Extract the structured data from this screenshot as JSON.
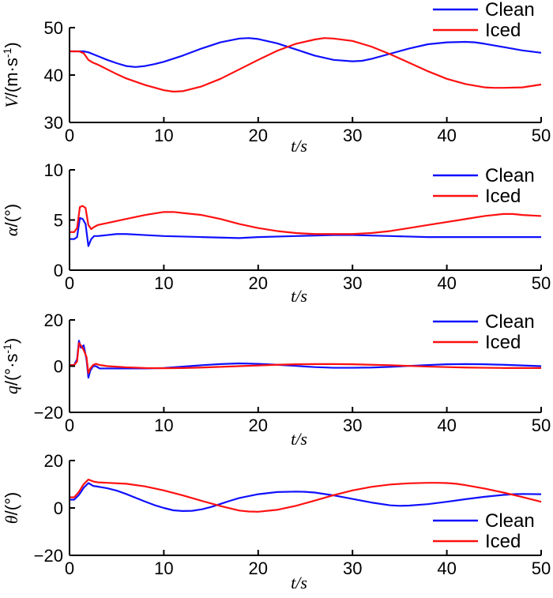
{
  "colors": {
    "clean": "#1010ff",
    "iced": "#ff1010",
    "axis": "#000000",
    "background": "#ffffff"
  },
  "chart_data": [
    {
      "type": "line",
      "id": "velocity",
      "ylabel_main": "V",
      "ylabel_unit": "/(m·s",
      "ylabel_sup": "-1",
      "ylabel_close": ")",
      "xlabel": "t/s",
      "xlim": [
        0,
        50
      ],
      "ylim": [
        30,
        50
      ],
      "xticks": [
        0,
        10,
        20,
        30,
        40,
        50
      ],
      "yticks": [
        30,
        40,
        50
      ],
      "xtick_labels": [
        "0",
        "10",
        "20",
        "30",
        "40",
        "50"
      ],
      "ytick_labels": [
        "30",
        "40",
        "50"
      ],
      "legend": [
        "Clean",
        "Iced"
      ],
      "legend_position": "top-right",
      "series": [
        {
          "name": "Clean",
          "x": [
            0,
            0.5,
            1,
            1.5,
            2,
            3,
            4,
            5,
            6,
            7,
            8,
            9,
            10,
            12,
            14,
            16,
            18,
            19,
            20,
            22,
            24,
            26,
            28,
            30,
            31,
            32,
            34,
            36,
            38,
            40,
            42,
            43,
            44,
            46,
            48,
            50
          ],
          "values": [
            45,
            45,
            45,
            45,
            44.8,
            44,
            43.2,
            42.5,
            41.9,
            41.7,
            41.9,
            42.3,
            42.8,
            44.1,
            45.6,
            46.9,
            47.7,
            47.8,
            47.6,
            46.7,
            45.4,
            44.1,
            43.2,
            42.9,
            43,
            43.4,
            44.5,
            45.6,
            46.5,
            46.9,
            47,
            46.9,
            46.6,
            45.9,
            45.2,
            44.7
          ]
        },
        {
          "name": "Iced",
          "x": [
            0,
            0.5,
            1,
            1.5,
            2,
            2.5,
            3,
            4,
            5,
            6,
            8,
            10,
            11,
            12,
            14,
            16,
            18,
            20,
            22,
            24,
            26,
            27,
            28,
            30,
            32,
            34,
            36,
            38,
            40,
            42,
            44,
            45,
            46,
            48,
            50
          ],
          "values": [
            45,
            45,
            45,
            44.6,
            43.2,
            42.6,
            42.2,
            41.2,
            40.2,
            39.3,
            37.9,
            36.8,
            36.5,
            36.6,
            37.6,
            39.2,
            41.2,
            43.2,
            45.1,
            46.6,
            47.5,
            47.8,
            47.7,
            47.2,
            46,
            44.4,
            42.6,
            40.8,
            39.2,
            38.1,
            37.4,
            37.3,
            37.3,
            37.4,
            38
          ]
        }
      ]
    },
    {
      "type": "line",
      "id": "alpha",
      "ylabel_main": "α",
      "ylabel_unit": "/(°)",
      "ylabel_sup": "",
      "ylabel_close": "",
      "xlabel": "t/s",
      "xlim": [
        0,
        50
      ],
      "ylim": [
        0,
        10
      ],
      "xticks": [
        0,
        10,
        20,
        30,
        40,
        50
      ],
      "yticks": [
        0,
        5,
        10
      ],
      "xtick_labels": [
        "0",
        "10",
        "20",
        "30",
        "40",
        "50"
      ],
      "ytick_labels": [
        "0",
        "5",
        "10"
      ],
      "legend": [
        "Clean",
        "Iced"
      ],
      "legend_position": "top-right",
      "series": [
        {
          "name": "Clean",
          "x": [
            0,
            0.5,
            0.8,
            1.1,
            1.4,
            1.7,
            2.0,
            2.3,
            2.6,
            3,
            4,
            5,
            6,
            8,
            10,
            14,
            18,
            20,
            24,
            28,
            30,
            34,
            38,
            42,
            46,
            50
          ],
          "values": [
            3.1,
            3.1,
            3.3,
            5.2,
            5.1,
            4.6,
            2.4,
            3.1,
            3.4,
            3.4,
            3.5,
            3.6,
            3.6,
            3.5,
            3.4,
            3.3,
            3.2,
            3.3,
            3.4,
            3.5,
            3.5,
            3.4,
            3.3,
            3.3,
            3.3,
            3.3
          ]
        },
        {
          "name": "Iced",
          "x": [
            0,
            0.5,
            0.8,
            1.1,
            1.4,
            1.7,
            2.0,
            2.3,
            2.6,
            3,
            4,
            6,
            8,
            10,
            11,
            12,
            14,
            16,
            18,
            20,
            22,
            24,
            26,
            28,
            30,
            32,
            34,
            36,
            38,
            40,
            42,
            44,
            46,
            47,
            48,
            50
          ],
          "values": [
            3.8,
            3.8,
            4.2,
            6.3,
            6.4,
            6.2,
            4.5,
            4.1,
            4.3,
            4.5,
            4.7,
            5.1,
            5.5,
            5.8,
            5.8,
            5.7,
            5.5,
            5.1,
            4.6,
            4.2,
            3.9,
            3.7,
            3.6,
            3.6,
            3.6,
            3.7,
            3.9,
            4.2,
            4.5,
            4.8,
            5.1,
            5.4,
            5.6,
            5.6,
            5.5,
            5.4
          ]
        }
      ]
    },
    {
      "type": "line",
      "id": "pitch_rate",
      "ylabel_main": "q",
      "ylabel_unit": "/(°·s",
      "ylabel_sup": "-1",
      "ylabel_close": ")",
      "xlabel": "t/s",
      "xlim": [
        0,
        50
      ],
      "ylim": [
        -20,
        20
      ],
      "xticks": [
        0,
        10,
        20,
        30,
        40,
        50
      ],
      "yticks": [
        -20,
        0,
        20
      ],
      "xtick_labels": [
        "0",
        "10",
        "20",
        "30",
        "40",
        "50"
      ],
      "ytick_labels": [
        "−20",
        "0",
        "20"
      ],
      "legend": [
        "Clean",
        "Iced"
      ],
      "legend_position": "top-right",
      "series": [
        {
          "name": "Clean",
          "x": [
            0,
            0.5,
            0.8,
            1.0,
            1.2,
            1.5,
            1.8,
            2.0,
            2.2,
            2.5,
            2.8,
            3.2,
            4,
            6,
            8,
            10,
            12,
            14,
            16,
            18,
            20,
            22,
            24,
            26,
            28,
            30,
            32,
            34,
            36,
            38,
            40,
            42,
            44,
            46,
            48,
            50
          ],
          "values": [
            0.5,
            0.5,
            3,
            11,
            8,
            9,
            3,
            -5,
            -2,
            0,
            0,
            -1,
            -1,
            -1,
            -1,
            -0.8,
            -0.2,
            0.4,
            0.9,
            1.2,
            1,
            0.6,
            0.1,
            -0.4,
            -0.7,
            -0.7,
            -0.6,
            -0.3,
            0.1,
            0.5,
            0.8,
            0.9,
            0.8,
            0.6,
            0.3,
            0
          ]
        },
        {
          "name": "Iced",
          "x": [
            0,
            0.5,
            0.8,
            1.0,
            1.2,
            1.5,
            1.8,
            2.0,
            2.2,
            2.5,
            2.8,
            3.2,
            4,
            6,
            8,
            10,
            12,
            14,
            16,
            18,
            20,
            22,
            24,
            26,
            28,
            30,
            32,
            34,
            36,
            38,
            40,
            42,
            44,
            46,
            48,
            50
          ],
          "values": [
            0.5,
            0.5,
            2,
            10,
            9,
            7,
            4,
            -3,
            -1,
            0.5,
            1,
            0.5,
            0,
            -0.5,
            -0.8,
            -0.9,
            -0.8,
            -0.6,
            -0.3,
            0,
            0.3,
            0.6,
            0.8,
            0.9,
            0.9,
            0.8,
            0.6,
            0.4,
            0.1,
            -0.2,
            -0.4,
            -0.6,
            -0.7,
            -0.8,
            -0.8,
            -0.8
          ]
        }
      ]
    },
    {
      "type": "line",
      "id": "theta",
      "ylabel_main": "θ",
      "ylabel_unit": "/(°)",
      "ylabel_sup": "",
      "ylabel_close": "",
      "xlabel": "t/s",
      "xlim": [
        0,
        50
      ],
      "ylim": [
        -20,
        20
      ],
      "xticks": [
        0,
        10,
        20,
        30,
        40,
        50
      ],
      "yticks": [
        -20,
        0,
        20
      ],
      "xtick_labels": [
        "0",
        "10",
        "20",
        "30",
        "40",
        "50"
      ],
      "ytick_labels": [
        "−20",
        "0",
        "20"
      ],
      "legend": [
        "Clean",
        "Iced"
      ],
      "legend_position": "bottom-right",
      "series": [
        {
          "name": "Clean",
          "x": [
            0,
            0.5,
            1,
            1.5,
            2,
            2.5,
            3,
            4,
            5,
            6,
            7,
            8,
            9,
            10,
            11,
            12,
            13,
            14,
            15,
            16,
            17,
            18,
            20,
            22,
            24,
            25,
            26,
            28,
            30,
            32,
            34,
            35,
            36,
            38,
            40,
            42,
            44,
            46,
            47,
            48,
            50
          ],
          "values": [
            3.5,
            3.5,
            5.5,
            8.5,
            10.5,
            9.3,
            9,
            8.3,
            7.3,
            5.9,
            4.3,
            2.7,
            1.2,
            0,
            -1,
            -1.3,
            -1.2,
            -0.6,
            0.4,
            1.7,
            3,
            4.2,
            5.8,
            6.7,
            6.9,
            6.8,
            6.5,
            5.3,
            3.8,
            2.3,
            1.1,
            0.9,
            1,
            1.6,
            2.6,
            3.7,
            4.7,
            5.5,
            5.8,
            5.9,
            5.8
          ]
        },
        {
          "name": "Iced",
          "x": [
            0,
            0.5,
            1,
            1.5,
            2,
            2.5,
            3,
            4,
            6,
            8,
            10,
            12,
            14,
            16,
            18,
            19,
            20,
            22,
            24,
            26,
            28,
            30,
            32,
            34,
            36,
            38,
            39,
            40,
            41,
            42,
            44,
            46,
            48,
            50
          ],
          "values": [
            4.5,
            4.5,
            6.8,
            10,
            12,
            11.2,
            10.8,
            10.6,
            10.2,
            9.1,
            7.4,
            5.3,
            3,
            0.8,
            -1.1,
            -1.5,
            -1.6,
            -0.8,
            0.9,
            3.1,
            5.4,
            7.4,
            8.9,
            9.9,
            10.4,
            10.6,
            10.6,
            10.5,
            10.2,
            9.6,
            8.2,
            6.5,
            4.6,
            2.6
          ]
        }
      ]
    }
  ]
}
